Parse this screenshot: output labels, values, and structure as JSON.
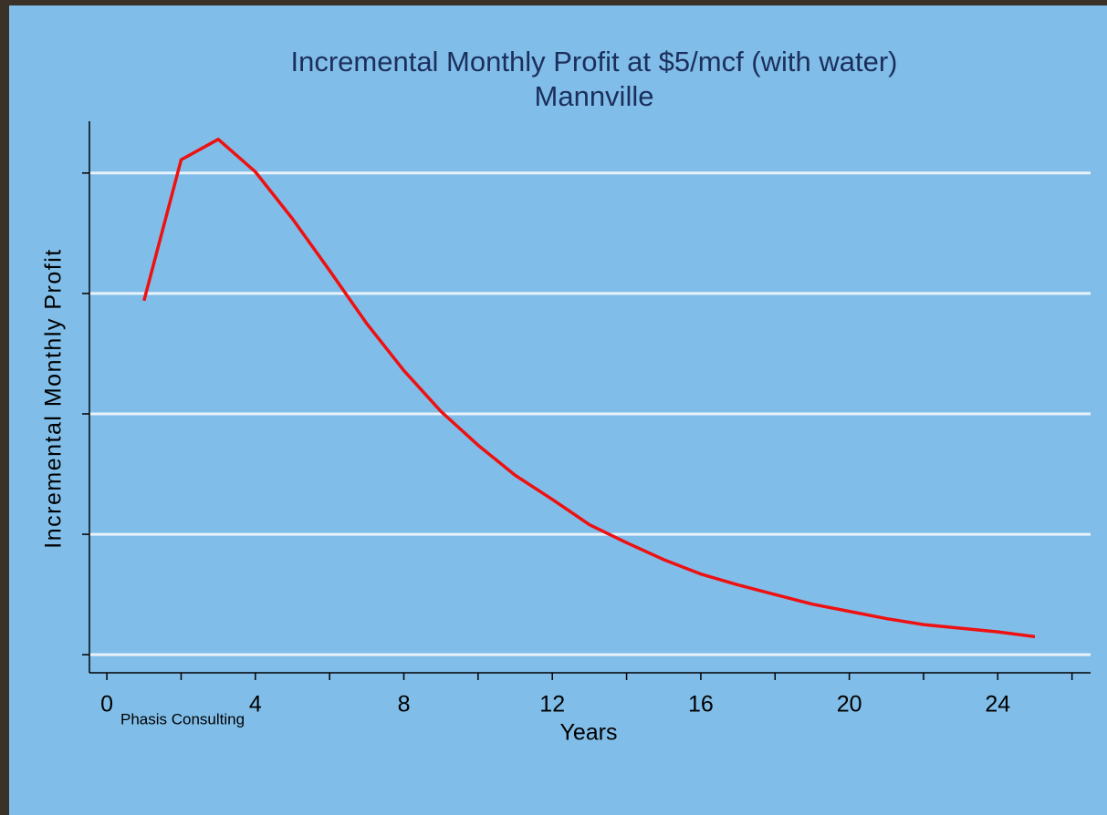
{
  "chart_data": {
    "type": "line",
    "title": "Incremental Monthly Profit at $5/mcf (with water)",
    "subtitle": "Mannville",
    "x_label": "Years",
    "y_label": "Incremental Monthly Profit",
    "source": "Phasis Consulting",
    "x": [
      1,
      2,
      3,
      4,
      5,
      6,
      7,
      8,
      9,
      10,
      11,
      12,
      13,
      14,
      15,
      16,
      17,
      18,
      19,
      20,
      21,
      22,
      23,
      24,
      25
    ],
    "series": [
      {
        "name": "Incremental Monthly Profit",
        "color": "#ee1111",
        "values": [
          2.94,
          4.11,
          4.28,
          4.01,
          3.62,
          3.19,
          2.75,
          2.36,
          2.02,
          1.74,
          1.49,
          1.29,
          1.08,
          0.93,
          0.79,
          0.67,
          0.58,
          0.5,
          0.42,
          0.36,
          0.3,
          0.25,
          0.22,
          0.19,
          0.15
        ]
      }
    ],
    "xlim": [
      -0.47,
      26.5
    ],
    "xticks": [
      0,
      4,
      8,
      12,
      16,
      20,
      24
    ],
    "xminorticks": [
      2,
      6,
      10,
      14,
      18,
      22,
      26
    ],
    "ylim": [
      -0.15,
      4.43
    ],
    "yticks": [
      0,
      1,
      2,
      3,
      4
    ],
    "grid": true
  }
}
